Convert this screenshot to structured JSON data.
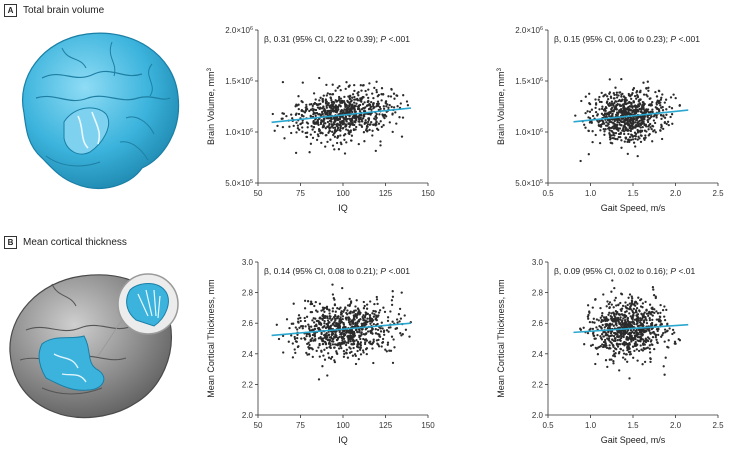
{
  "panels": {
    "a": {
      "letter": "A",
      "title": "Total brain volume"
    },
    "b": {
      "letter": "B",
      "title": "Mean cortical thickness"
    }
  },
  "colors": {
    "dots": "#2b2b2b",
    "fit": "#2aa7cf",
    "brain_blue": "#3bb3dc",
    "brain_gray": "#8c8c8c"
  },
  "illustrations": {
    "a": "brain-blue-illustration",
    "b": "brain-gray-illustration"
  },
  "chart_data": [
    {
      "id": "iq-vol",
      "type": "scatter",
      "annotation": "β, 0.31 (95% CI, 0.22 to 0.39); P <.001",
      "xlabel": "IQ",
      "ylabel": "Brain Volume, mm",
      "xlim": [
        50,
        150
      ],
      "ylim": [
        500000,
        2000000
      ],
      "xticks": [
        50,
        75,
        100,
        125,
        150
      ],
      "yticks": [
        500000,
        1000000,
        1500000,
        2000000
      ],
      "yticklabels": [
        "5.0×10",
        "1.0×10",
        "1.5×10",
        "2.0×10"
      ],
      "ytick_exps": [
        "5",
        "6",
        "6",
        "6"
      ],
      "fit": {
        "x": [
          58,
          140
        ],
        "y": [
          1095000,
          1235000
        ]
      },
      "gen": {
        "xmean": 100,
        "xsd": 15,
        "xmin": 58,
        "xmax": 140,
        "ysd": 120000
      }
    },
    {
      "id": "gait-vol",
      "type": "scatter",
      "annotation": "β, 0.15 (95% CI, 0.06 to 0.23); P <.001",
      "xlabel": "Gait Speed, m/s",
      "ylabel": "Brain Volume, mm",
      "xlim": [
        0.5,
        2.5
      ],
      "ylim": [
        500000,
        2000000
      ],
      "xticks": [
        0.5,
        1.0,
        1.5,
        2.0,
        2.5
      ],
      "yticks": [
        500000,
        1000000,
        1500000,
        2000000
      ],
      "yticklabels": [
        "5.0×10",
        "1.0×10",
        "1.5×10",
        "2.0×10"
      ],
      "ytick_exps": [
        "5",
        "6",
        "6",
        "6"
      ],
      "fit": {
        "x": [
          0.8,
          2.15
        ],
        "y": [
          1100000,
          1215000
        ]
      },
      "gen": {
        "xmean": 1.45,
        "xsd": 0.22,
        "xmin": 0.8,
        "xmax": 2.15,
        "ysd": 115000
      }
    },
    {
      "id": "iq-ct",
      "type": "scatter",
      "annotation": "β, 0.14 (95% CI, 0.08 to 0.21); P <.001",
      "xlabel": "IQ",
      "ylabel": "Mean Cortical Thickness, mm",
      "xlim": [
        50,
        150
      ],
      "ylim": [
        2.0,
        3.0
      ],
      "xticks": [
        50,
        75,
        100,
        125,
        150
      ],
      "yticks": [
        2.0,
        2.2,
        2.4,
        2.6,
        2.8,
        3.0
      ],
      "yticklabels": [
        "2.0",
        "2.2",
        "2.4",
        "2.6",
        "2.8",
        "3.0"
      ],
      "fit": {
        "x": [
          58,
          140
        ],
        "y": [
          2.52,
          2.6
        ]
      },
      "gen": {
        "xmean": 100,
        "xsd": 15,
        "xmin": 58,
        "xmax": 140,
        "ysd": 0.09
      }
    },
    {
      "id": "gait-ct",
      "type": "scatter",
      "annotation": "β, 0.09 (95% CI, 0.02 to 0.16); P <.01",
      "xlabel": "Gait Speed, m/s",
      "ylabel": "Mean Cortical Thickness, mm",
      "xlim": [
        0.5,
        2.5
      ],
      "ylim": [
        2.0,
        3.0
      ],
      "xticks": [
        0.5,
        1.0,
        1.5,
        2.0,
        2.5
      ],
      "yticks": [
        2.0,
        2.2,
        2.4,
        2.6,
        2.8,
        3.0
      ],
      "yticklabels": [
        "2.0",
        "2.2",
        "2.4",
        "2.6",
        "2.8",
        "3.0"
      ],
      "fit": {
        "x": [
          0.8,
          2.15
        ],
        "y": [
          2.54,
          2.59
        ]
      },
      "gen": {
        "xmean": 1.45,
        "xsd": 0.22,
        "xmin": 0.8,
        "xmax": 2.15,
        "ysd": 0.09
      }
    }
  ]
}
